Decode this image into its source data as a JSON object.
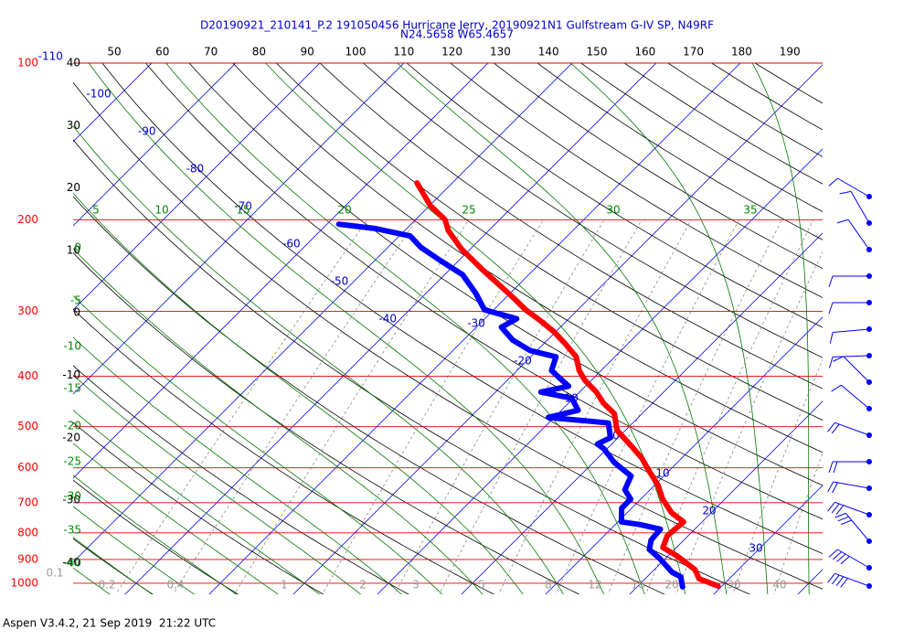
{
  "chart_data": {
    "type": "skewt",
    "title": "D20190921_210141_P.2 191050456 Hurricane Jerry, 20190921N1 Gulfstream G-IV SP, N49RF",
    "subtitle": "N24.5658 W65.4657",
    "footer": "Aspen V3.4.2, 21 Sep 2019  21:22 UTC",
    "ylim": [
      100,
      1050
    ],
    "yticks": [
      100,
      200,
      300,
      400,
      500,
      600,
      700,
      800,
      900,
      1000
    ],
    "isotherm_labels": [
      -110,
      -100,
      -90,
      -80,
      -70,
      -60,
      -50,
      -40,
      -30,
      -20,
      -10,
      0,
      10,
      20,
      30
    ],
    "theta_labels": [
      50,
      60,
      70,
      80,
      90,
      100,
      110,
      120,
      130,
      140,
      150,
      160,
      170,
      180,
      190
    ],
    "height_labels": [
      40,
      30,
      20,
      10,
      0,
      -10,
      -20,
      -30,
      -40
    ],
    "moist_labels_left": [
      0,
      -5,
      -10,
      -15,
      -20,
      -25,
      -30,
      -35,
      -40
    ],
    "moist_labels_top": [
      5,
      10,
      15,
      20,
      25,
      30,
      35
    ],
    "mixing_ratio_labels": [
      0.1,
      0.2,
      0.4,
      1,
      2,
      3,
      5,
      8,
      12,
      16,
      20,
      30,
      40
    ],
    "series": [
      {
        "color": "#ff0000",
        "p": [
          1012,
          980,
          941,
          885,
          854,
          810,
          762,
          732,
          689,
          648,
          602,
          574,
          544,
          508,
          472,
          450,
          429,
          407,
          390,
          367,
          346,
          328,
          312,
          298,
          282,
          266,
          250,
          228,
          210,
          200,
          188,
          170
        ],
        "values": [
          29.5,
          26.4,
          24.8,
          21.0,
          18.4,
          17.5,
          17.8,
          15.3,
          12.6,
          10.4,
          7.2,
          5.2,
          2.5,
          -1.0,
          -3.3,
          -5.9,
          -8.0,
          -10.8,
          -12.6,
          -14.6,
          -17.5,
          -20.3,
          -23.3,
          -26.2,
          -29.2,
          -32.5,
          -36.0,
          -41.0,
          -44.8,
          -46.5,
          -49.9,
          -54.2
        ]
      },
      {
        "color": "#0000ff",
        "p": [
          1016,
          972,
          952,
          896,
          861,
          826,
          787,
          771,
          762,
          717,
          689,
          661,
          622,
          586,
          551,
          540,
          525,
          492,
          488,
          480,
          465,
          441,
          429,
          418,
          390,
          367,
          357,
          341,
          322,
          310,
          298,
          277,
          255,
          240,
          226,
          215,
          208,
          204
        ],
        "values": [
          25.4,
          24.0,
          22.4,
          19.3,
          17.0,
          16.1,
          15.9,
          12.9,
          10.4,
          8.8,
          8.8,
          7.0,
          6.1,
          2.5,
          -0.4,
          -1.7,
          -0.9,
          -2.9,
          -5.3,
          -10.7,
          -8.0,
          -10.2,
          -14.6,
          -12.0,
          -15.9,
          -17.0,
          -20.8,
          -24.1,
          -27.0,
          -26.2,
          -31.1,
          -34.1,
          -37.9,
          -42.1,
          -46.1,
          -48.7,
          -53.7,
          -58.6
        ]
      }
    ]
  }
}
